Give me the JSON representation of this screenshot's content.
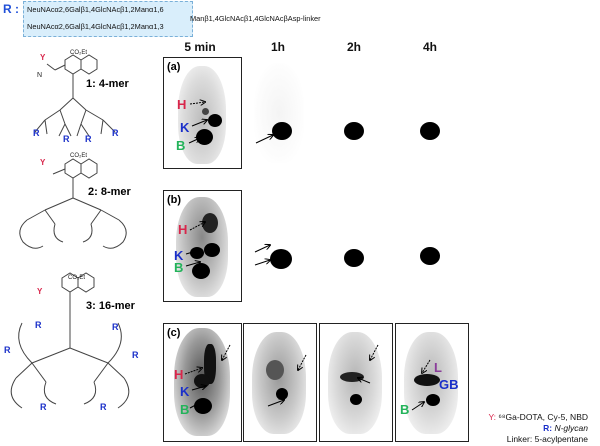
{
  "legend_top": {
    "r_label": "R :",
    "line1": "NeuNAcα2,6Galβ1,4GlcNAcβ1,2Manα1,6",
    "line2": "NeuNAcα2,6Galβ1,4GlcNAcβ1,2Manα1,3",
    "core": "Manβ1,4GlcNAcβ1,4GlcNAcβAsp-linker"
  },
  "compounds": [
    {
      "num": "1",
      "label": ": 4-mer"
    },
    {
      "num": "2",
      "label": ": 8-mer"
    },
    {
      "num": "3",
      "label": ": 16-mer"
    }
  ],
  "structure_labels": {
    "y": "Y",
    "r": "R",
    "n": "N",
    "o": "O",
    "h": "H",
    "ester": "CO₂Et"
  },
  "columns": [
    "5 min",
    "1h",
    "2h",
    "4h"
  ],
  "panel_letters": [
    "(a)",
    "(b)",
    "(c)"
  ],
  "organs": {
    "h": "H",
    "k": "K",
    "b": "B",
    "gb": "GB",
    "l": "L"
  },
  "organ_colors": {
    "h": "#d8264b",
    "k": "#1a2fc9",
    "b": "#23b35a",
    "gb": "#1a2fc9",
    "l": "#8a3c9a"
  },
  "legend_bottom": {
    "y_prefix": "Y:",
    "y_text": "⁶⁸Ga-DOTA, Cy-5, NBD",
    "r_prefix": "R:",
    "r_text": "N-glycan",
    "linker": "Linker: 5-acylpentane"
  }
}
